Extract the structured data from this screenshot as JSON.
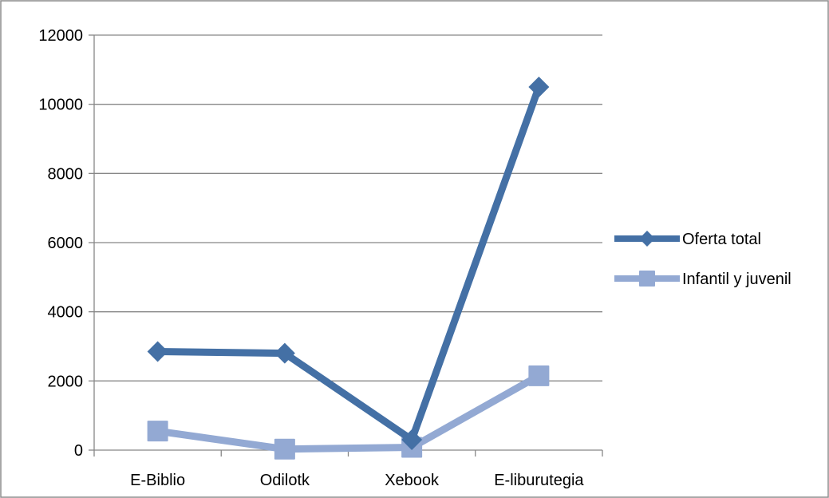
{
  "chart_data": {
    "type": "line",
    "title": "",
    "xlabel": "",
    "ylabel": "",
    "categories": [
      "E-Biblio",
      "Odilotk",
      "Xebook",
      "E-liburutegia"
    ],
    "ylim": [
      0,
      12000
    ],
    "y_ticks": [
      0,
      2000,
      4000,
      6000,
      8000,
      10000,
      12000
    ],
    "grid": true,
    "legend_position": "right",
    "series": [
      {
        "name": "Oferta total",
        "values": [
          2850,
          2800,
          300,
          10500
        ],
        "color": "#4470A5",
        "marker": "diamond"
      },
      {
        "name": "Infantil y juvenil",
        "values": [
          550,
          30,
          80,
          2150
        ],
        "color": "#93A9D3",
        "marker": "square"
      }
    ]
  }
}
